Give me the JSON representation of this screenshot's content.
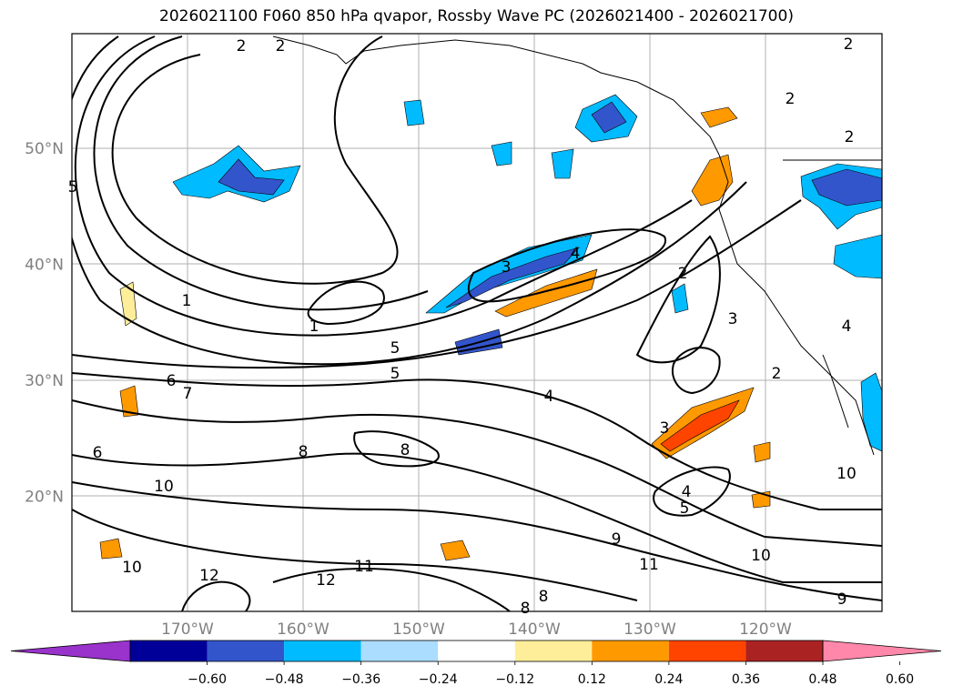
{
  "title": "2026021100 F060 850 hPa qvapor, Rossby Wave PC (2026021400 - 2026021700)",
  "map": {
    "lat_labels": [
      "50°N",
      "40°N",
      "30°N",
      "20°N"
    ],
    "lon_labels": [
      "170°W",
      "160°W",
      "150°W",
      "140°W",
      "130°W",
      "120°W"
    ],
    "lat_values": [
      50,
      40,
      30,
      20
    ],
    "lon_values": [
      -170,
      -160,
      -150,
      -140,
      -130,
      -120
    ],
    "contour_labels": [
      "2",
      "2",
      "2",
      "2",
      "5",
      "1",
      "1",
      "5",
      "5",
      "3",
      "4",
      "2",
      "3",
      "2",
      "2",
      "4",
      "4",
      "3",
      "6",
      "7",
      "6",
      "8",
      "8",
      "10",
      "4",
      "5",
      "10",
      "9",
      "11",
      "11",
      "12",
      "12",
      "10",
      "8",
      "8",
      "9",
      "10"
    ],
    "colors": {
      "coast": "#000000",
      "grid": "#b0b0b0",
      "contour": "#000000"
    }
  },
  "colorbar": {
    "ticks": [
      "−0.60",
      "−0.48",
      "−0.36",
      "−0.24",
      "−0.12",
      "0.12",
      "0.24",
      "0.36",
      "0.48",
      "0.60"
    ],
    "colors": [
      "#9933cc",
      "#000099",
      "#3355cc",
      "#00bbff",
      "#aaddff",
      "#ffffff",
      "#ffee99",
      "#ff9900",
      "#ff4400",
      "#aa2222",
      "#ff88aa"
    ]
  }
}
